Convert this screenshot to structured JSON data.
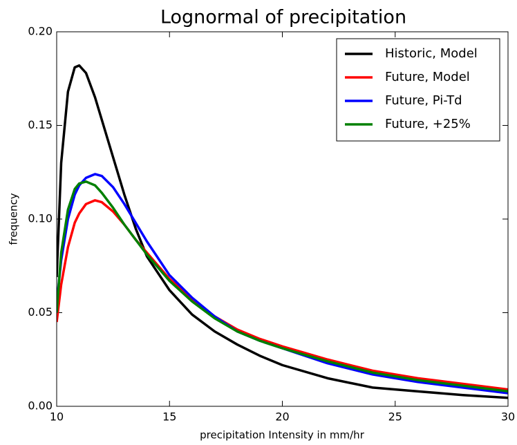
{
  "chart_data": {
    "type": "line",
    "title": "Lognormal of precipitation",
    "x_label": "precipitation Intensity in mm/hr",
    "y_label": "frequency",
    "x": [
      10,
      10.2,
      10.5,
      10.8,
      11,
      11.3,
      11.7,
      12,
      12.5,
      13,
      13.5,
      14,
      15,
      16,
      17,
      18,
      19,
      20,
      22,
      24,
      26,
      28,
      30
    ],
    "series": [
      {
        "name": "Historic, Model",
        "color": "#000000",
        "values": [
          0.069,
          0.13,
          0.168,
          0.181,
          0.182,
          0.178,
          0.165,
          0.153,
          0.133,
          0.113,
          0.095,
          0.08,
          0.062,
          0.049,
          0.04,
          0.033,
          0.027,
          0.022,
          0.015,
          0.01,
          0.008,
          0.006,
          0.0045
        ]
      },
      {
        "name": "Future, Model",
        "color": "#ff0000",
        "values": [
          0.045,
          0.065,
          0.085,
          0.098,
          0.103,
          0.108,
          0.11,
          0.109,
          0.104,
          0.097,
          0.089,
          0.082,
          0.068,
          0.057,
          0.048,
          0.041,
          0.036,
          0.032,
          0.025,
          0.019,
          0.015,
          0.012,
          0.009
        ]
      },
      {
        "name": "Future, Pi-Td",
        "color": "#0000ff",
        "values": [
          0.055,
          0.078,
          0.1,
          0.113,
          0.118,
          0.122,
          0.124,
          0.123,
          0.117,
          0.108,
          0.098,
          0.088,
          0.07,
          0.058,
          0.048,
          0.04,
          0.035,
          0.031,
          0.023,
          0.017,
          0.013,
          0.01,
          0.007
        ]
      },
      {
        "name": "Future, +25%",
        "color": "#008000",
        "values": [
          0.05,
          0.082,
          0.105,
          0.116,
          0.119,
          0.12,
          0.118,
          0.114,
          0.106,
          0.097,
          0.089,
          0.081,
          0.067,
          0.056,
          0.047,
          0.04,
          0.035,
          0.031,
          0.024,
          0.018,
          0.014,
          0.011,
          0.008
        ]
      }
    ],
    "xlim": [
      10,
      30
    ],
    "xticks": [
      10,
      15,
      20,
      25,
      30
    ],
    "ylim": [
      0,
      0.2
    ],
    "yticks": [
      {
        "value": 0,
        "label": "0.00"
      },
      {
        "value": 0.05,
        "label": "0.05"
      },
      {
        "value": 0.1,
        "label": "0.10"
      },
      {
        "value": 0.15,
        "label": "0.15"
      },
      {
        "value": 0.2,
        "label": "0.20"
      }
    ],
    "legend": "upper right",
    "grid": false
  }
}
